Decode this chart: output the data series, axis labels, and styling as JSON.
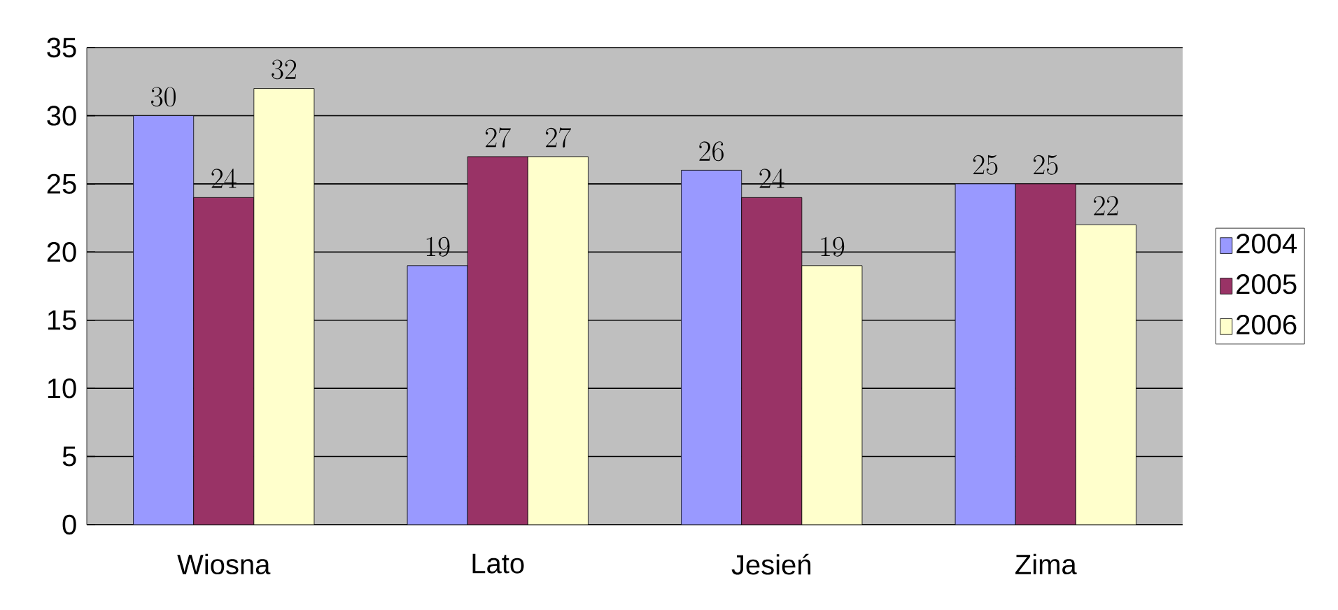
{
  "chart_data": {
    "type": "bar",
    "categories": [
      "Wiosna",
      "Lato",
      "Jesień",
      "Zima"
    ],
    "series": [
      {
        "name": "2004",
        "color": "#9999ff",
        "values": [
          30,
          19,
          26,
          25
        ]
      },
      {
        "name": "2005",
        "color": "#993366",
        "values": [
          24,
          27,
          24,
          25
        ]
      },
      {
        "name": "2006",
        "color": "#ffffcc",
        "values": [
          32,
          27,
          19,
          22
        ]
      }
    ],
    "ylim": [
      0,
      35
    ],
    "yticks": [
      0,
      5,
      10,
      15,
      20,
      25,
      30,
      35
    ],
    "grid": "y",
    "legend": "right",
    "data_labels": true
  }
}
